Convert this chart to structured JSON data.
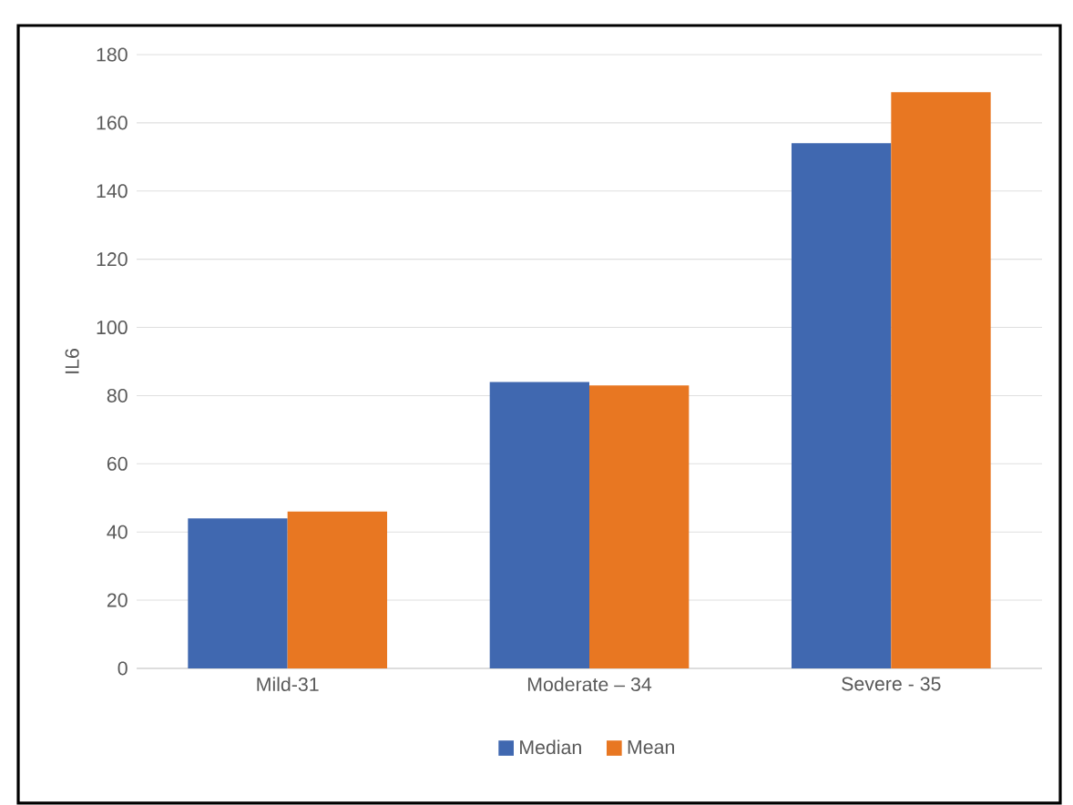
{
  "chart_data": {
    "type": "bar",
    "ylabel": "IL6",
    "categories": [
      "Mild-31",
      "Moderate – 34",
      "Severe - 35"
    ],
    "series": [
      {
        "name": "Median",
        "color": "#4068b0",
        "values": [
          44,
          84,
          154
        ]
      },
      {
        "name": "Mean",
        "color": "#e87722",
        "values": [
          46,
          83,
          169
        ]
      }
    ],
    "ylim": [
      0,
      180
    ],
    "yticks": [
      0,
      20,
      40,
      60,
      80,
      100,
      120,
      140,
      160,
      180
    ],
    "grid": "y",
    "legend": "bottom"
  }
}
